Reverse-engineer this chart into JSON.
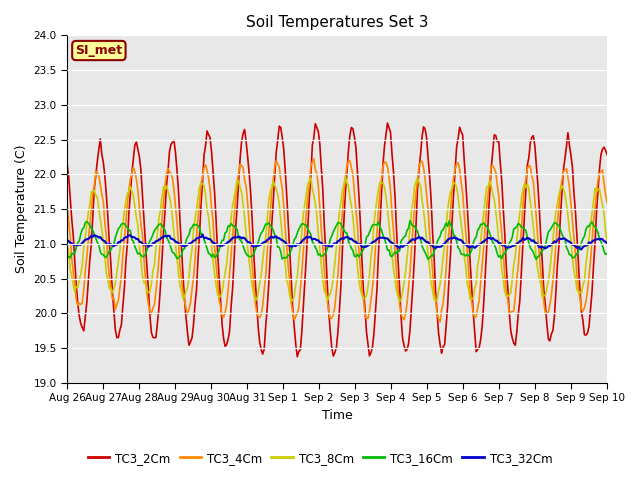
{
  "title": "Soil Temperatures Set 3",
  "xlabel": "Time",
  "ylabel": "Soil Temperature (C)",
  "ylim": [
    19.0,
    24.0
  ],
  "yticks": [
    19.0,
    19.5,
    20.0,
    20.5,
    21.0,
    21.5,
    22.0,
    22.5,
    23.0,
    23.5,
    24.0
  ],
  "bg_color": "#e8e8e8",
  "fig_color": "#ffffff",
  "annotation": "SI_met",
  "series_names": [
    "TC3_2Cm",
    "TC3_4Cm",
    "TC3_8Cm",
    "TC3_16Cm",
    "TC3_32Cm"
  ],
  "colors": [
    "#cc0000",
    "#ff8800",
    "#cccc00",
    "#00bb00",
    "#0000cc"
  ],
  "lws": [
    1.2,
    1.2,
    1.2,
    1.2,
    1.5
  ],
  "xtick_labels": [
    "Aug 26",
    "Aug 27",
    "Aug 28",
    "Aug 29",
    "Aug 30",
    "Aug 31",
    "Sep 1",
    "Sep 2",
    "Sep 3",
    "Sep 4",
    "Sep 5",
    "Sep 6",
    "Sep 7",
    "Sep 8",
    "Sep 9",
    "Sep 10"
  ]
}
